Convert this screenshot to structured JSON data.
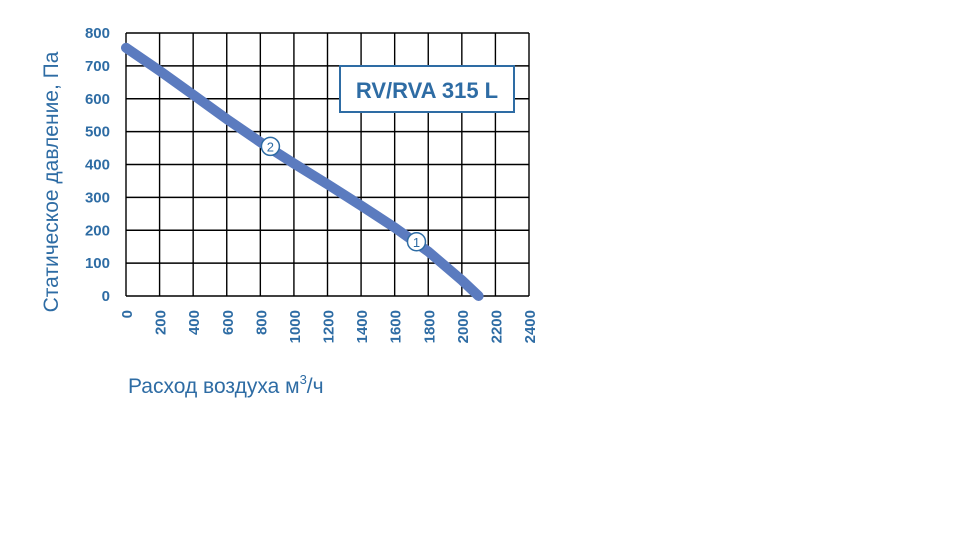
{
  "chart_data": {
    "type": "line",
    "title": "",
    "model_label": "RV/RVA 315 L",
    "xlabel": "Расход воздуха м",
    "xlabel_sup": "3",
    "xlabel_tail": "/ч",
    "ylabel": "Статическое давление, Па",
    "xlim": [
      0,
      2400
    ],
    "ylim": [
      0,
      800
    ],
    "xticks": [
      0,
      200,
      400,
      600,
      800,
      1000,
      1200,
      1400,
      1600,
      1800,
      2000,
      2200,
      2400
    ],
    "yticks": [
      0,
      100,
      200,
      300,
      400,
      500,
      600,
      700,
      800
    ],
    "grid": true,
    "series": [
      {
        "x": [
          0,
          200,
          400,
          600,
          800,
          1000,
          1200,
          1400,
          1600,
          1800,
          2000,
          2100
        ],
        "values": [
          755,
          685,
          612,
          538,
          468,
          403,
          340,
          275,
          208,
          135,
          48,
          0
        ]
      }
    ],
    "markers": [
      {
        "label": "2",
        "x": 860,
        "y": 455
      },
      {
        "label": "1",
        "x": 1730,
        "y": 165
      }
    ],
    "colors": {
      "curve": "#5b7bbf",
      "text": "#2e6ca4",
      "grid": "#000000",
      "frame": "#2e6ca4"
    }
  }
}
